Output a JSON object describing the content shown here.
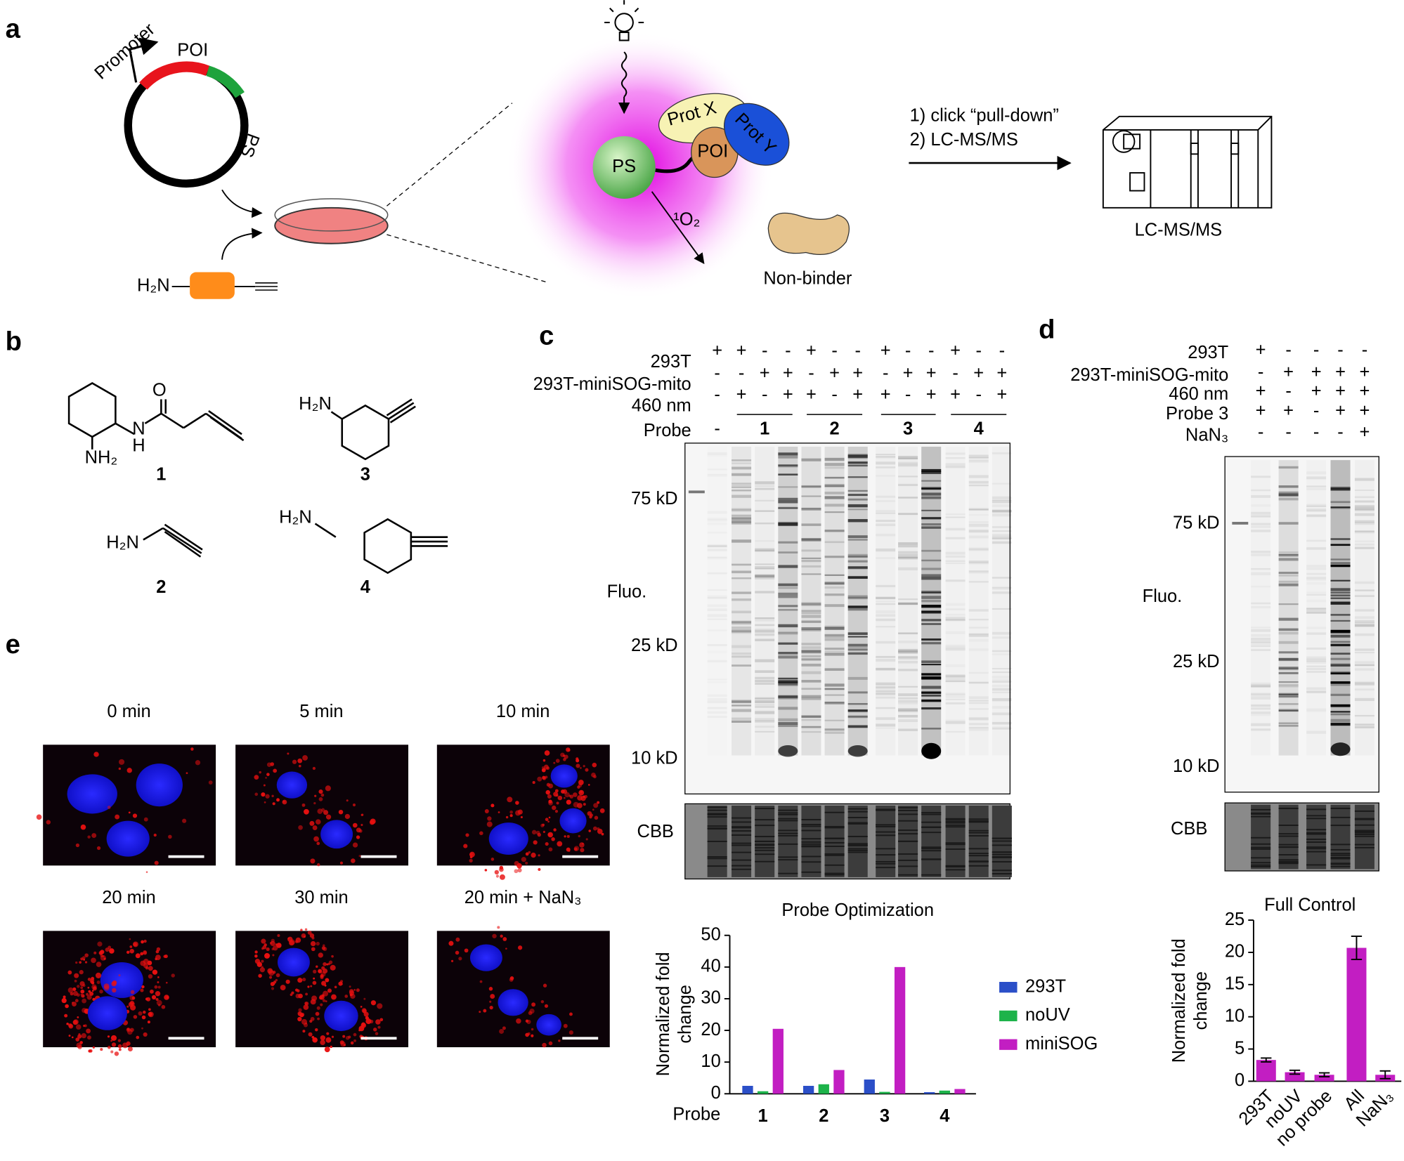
{
  "panel_a": {
    "label": "a",
    "plasmid": {
      "promoter": "Promoter",
      "poi": "POI",
      "ps": "PS"
    },
    "probe_amine": "H₂N",
    "ps": "PS",
    "prot_x": "Prot X",
    "prot_y": "Prot Y",
    "poi": "POI",
    "singlet_oxygen": "¹O₂",
    "non_binder": "Non-binder",
    "steps": [
      "1) click “pull-down”",
      "2) LC-MS/MS"
    ],
    "instrument": "LC-MS/MS"
  },
  "panel_b": {
    "label": "b",
    "compounds": [
      {
        "number": "1",
        "atoms": [
          "O",
          "N",
          "H",
          "NH₂"
        ]
      },
      {
        "number": "2",
        "atoms": [
          "H₂N"
        ]
      },
      {
        "number": "3",
        "atoms": [
          "H₂N"
        ]
      },
      {
        "number": "4",
        "atoms": [
          "H₂N"
        ]
      }
    ]
  },
  "panel_c": {
    "label": "c",
    "rows": [
      {
        "label": "293T",
        "signs": [
          "+",
          "+",
          "-",
          "-",
          "+",
          "-",
          "-",
          "+",
          "-",
          "-",
          "+",
          "-",
          "-"
        ]
      },
      {
        "label": "293T-miniSOG-mito",
        "signs": [
          "-",
          "-",
          "+",
          "+",
          "-",
          "+",
          "+",
          "-",
          "+",
          "+",
          "-",
          "+",
          "+"
        ]
      },
      {
        "label": "460 nm",
        "signs": [
          "-",
          "+",
          "-",
          "+",
          "+",
          "-",
          "+",
          "+",
          "-",
          "+",
          "+",
          "-",
          "+"
        ]
      }
    ],
    "probe_label": "Probe",
    "probe_groups": [
      "-",
      "1",
      "2",
      "3",
      "4"
    ],
    "markers": [
      "75 kD",
      "25 kD",
      "10 kD"
    ],
    "fluo": "Fluo.",
    "cbb": "CBB"
  },
  "panel_d": {
    "label": "d",
    "rows": [
      {
        "label": "293T",
        "signs": [
          "+",
          "-",
          "-",
          "-",
          "-"
        ]
      },
      {
        "label": "293T-miniSOG-mito",
        "signs": [
          "-",
          "+",
          "+",
          "+",
          "+"
        ]
      },
      {
        "label": "460 nm",
        "signs": [
          "+",
          "-",
          "+",
          "+",
          "+"
        ]
      },
      {
        "label": "Probe 3",
        "signs": [
          "+",
          "+",
          "-",
          "+",
          "+"
        ]
      },
      {
        "label": "NaN₃",
        "signs": [
          "-",
          "-",
          "-",
          "-",
          "+"
        ]
      }
    ],
    "markers": [
      "75 kD",
      "25 kD",
      "10 kD"
    ],
    "fluo": "Fluo.",
    "cbb": "CBB"
  },
  "panel_e": {
    "label": "e",
    "images": [
      "0 min",
      "5 min",
      "10 min",
      "20 min",
      "30 min",
      "20 min + NaN₃"
    ]
  },
  "chart_data": [
    {
      "type": "bar",
      "title": "Probe Optimization",
      "x_label": "Probe",
      "y_label": [
        "Normalized fold",
        "change"
      ],
      "categories": [
        "1",
        "2",
        "3",
        "4"
      ],
      "series": [
        {
          "name": "293T",
          "color": "#2b4fc8",
          "values": [
            2.5,
            2.5,
            4.5,
            0.5
          ]
        },
        {
          "name": "noUV",
          "color": "#1db34a",
          "values": [
            0.8,
            3,
            0.6,
            1
          ]
        },
        {
          "name": "miniSOG",
          "color": "#c21ec2",
          "values": [
            20.5,
            7.5,
            40,
            1.5
          ]
        }
      ],
      "ylim": [
        0,
        50
      ],
      "yticks": [
        0,
        10,
        20,
        30,
        40,
        50
      ]
    },
    {
      "type": "bar",
      "title": "Full Control",
      "y_label": [
        "Normalized fold",
        "change"
      ],
      "categories": [
        "293T",
        "noUV",
        "no probe",
        "All",
        "NaN₃"
      ],
      "values": [
        3.3,
        1.4,
        1.0,
        20.7,
        1.0
      ],
      "errors": [
        0.3,
        0.3,
        0.3,
        1.8,
        0.6
      ],
      "color": "#c21ec2",
      "ylim": [
        0,
        25
      ],
      "yticks": [
        0,
        5,
        10,
        15,
        20,
        25
      ]
    }
  ]
}
